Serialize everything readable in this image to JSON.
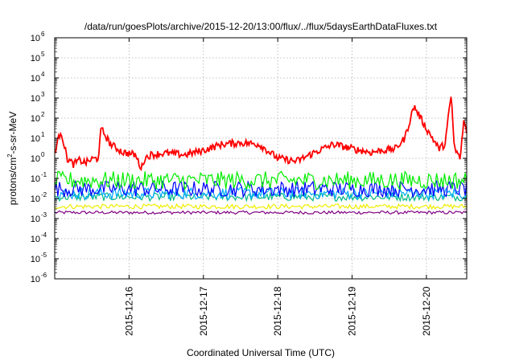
{
  "chart_data": {
    "type": "line",
    "title": "/data/run/goesPlots/archive/2015-12-20/13:00/flux/../flux/5daysEarthDataFluxes.txt",
    "xlabel": "Coordinated Universal Time (UTC)",
    "ylabel": {
      "base": "protons/cm",
      "sup": "2",
      "rest": "-s-sr-MeV"
    },
    "y_scale": "log",
    "ylim": [
      1e-06,
      1000000.0
    ],
    "y_ticks": [
      {
        "base": "10",
        "exp": "-6",
        "value": 1e-06
      },
      {
        "base": "10",
        "exp": "-5",
        "value": 1e-05
      },
      {
        "base": "10",
        "exp": "-4",
        "value": 0.0001
      },
      {
        "base": "10",
        "exp": "-3",
        "value": 0.001
      },
      {
        "base": "10",
        "exp": "-2",
        "value": 0.01
      },
      {
        "base": "10",
        "exp": "-1",
        "value": 0.1
      },
      {
        "base": "10",
        "exp": "0",
        "value": 1
      },
      {
        "base": "10",
        "exp": "1",
        "value": 10
      },
      {
        "base": "10",
        "exp": "2",
        "value": 100
      },
      {
        "base": "10",
        "exp": "3",
        "value": 1000
      },
      {
        "base": "10",
        "exp": "4",
        "value": 10000
      },
      {
        "base": "10",
        "exp": "5",
        "value": 100000
      },
      {
        "base": "10",
        "exp": "6",
        "value": 1000000
      }
    ],
    "xlim": [
      "2015-12-15 00:00",
      "2015-12-20 13:00"
    ],
    "x_ticks": [
      "2015-12-16",
      "2015-12-17",
      "2015-12-18",
      "2015-12-19",
      "2015-12-20"
    ],
    "grid": true,
    "series": [
      {
        "color": "#ff0000",
        "x": [
          "2015-12-15 00:00",
          "2015-12-15 02:00",
          "2015-12-15 04:00",
          "2015-12-15 06:00",
          "2015-12-15 08:00",
          "2015-12-15 10:00",
          "2015-12-15 12:00",
          "2015-12-15 14:00",
          "2015-12-15 15:00",
          "2015-12-15 18:00",
          "2015-12-15 22:00",
          "2015-12-16 02:00",
          "2015-12-16 04:00",
          "2015-12-16 05:00",
          "2015-12-16 07:00",
          "2015-12-16 12:00",
          "2015-12-16 18:00",
          "2015-12-17 00:00",
          "2015-12-17 06:00",
          "2015-12-17 12:00",
          "2015-12-17 18:00",
          "2015-12-18 00:00",
          "2015-12-18 06:00",
          "2015-12-18 12:00",
          "2015-12-18 18:00",
          "2015-12-19 00:00",
          "2015-12-19 06:00",
          "2015-12-19 10:00",
          "2015-12-19 14:00",
          "2015-12-19 17:00",
          "2015-12-19 20:00",
          "2015-12-20 00:00",
          "2015-12-20 02:00",
          "2015-12-20 04:00",
          "2015-12-20 06:00",
          "2015-12-20 08:00",
          "2015-12-20 09:00",
          "2015-12-20 11:00",
          "2015-12-20 12:00",
          "2015-12-20 13:00"
        ],
        "values": [
          2,
          25,
          1,
          0.5,
          0.8,
          0.6,
          0.9,
          1,
          30,
          5,
          2,
          1.5,
          0.3,
          1,
          1.5,
          1.8,
          1.5,
          2.5,
          5,
          6,
          5,
          1,
          0.7,
          2,
          5,
          3,
          2,
          2.5,
          3,
          10,
          400,
          30,
          10,
          3,
          5,
          1500,
          3,
          1,
          80,
          20
        ]
      },
      {
        "color": "#00ee00",
        "approx_level": 0.08,
        "spread": 0.45
      },
      {
        "color": "#0000ff",
        "approx_level": 0.03,
        "spread": 0.4
      },
      {
        "color": "#00aaff",
        "approx_level": 0.018,
        "spread": 0.3
      },
      {
        "color": "#00bb88",
        "approx_level": 0.012,
        "spread": 0.2
      },
      {
        "color": "#eeee00",
        "approx_level": 0.004,
        "spread": 0.12
      },
      {
        "color": "#800080",
        "approx_level": 0.002,
        "spread": 0.08
      }
    ]
  }
}
